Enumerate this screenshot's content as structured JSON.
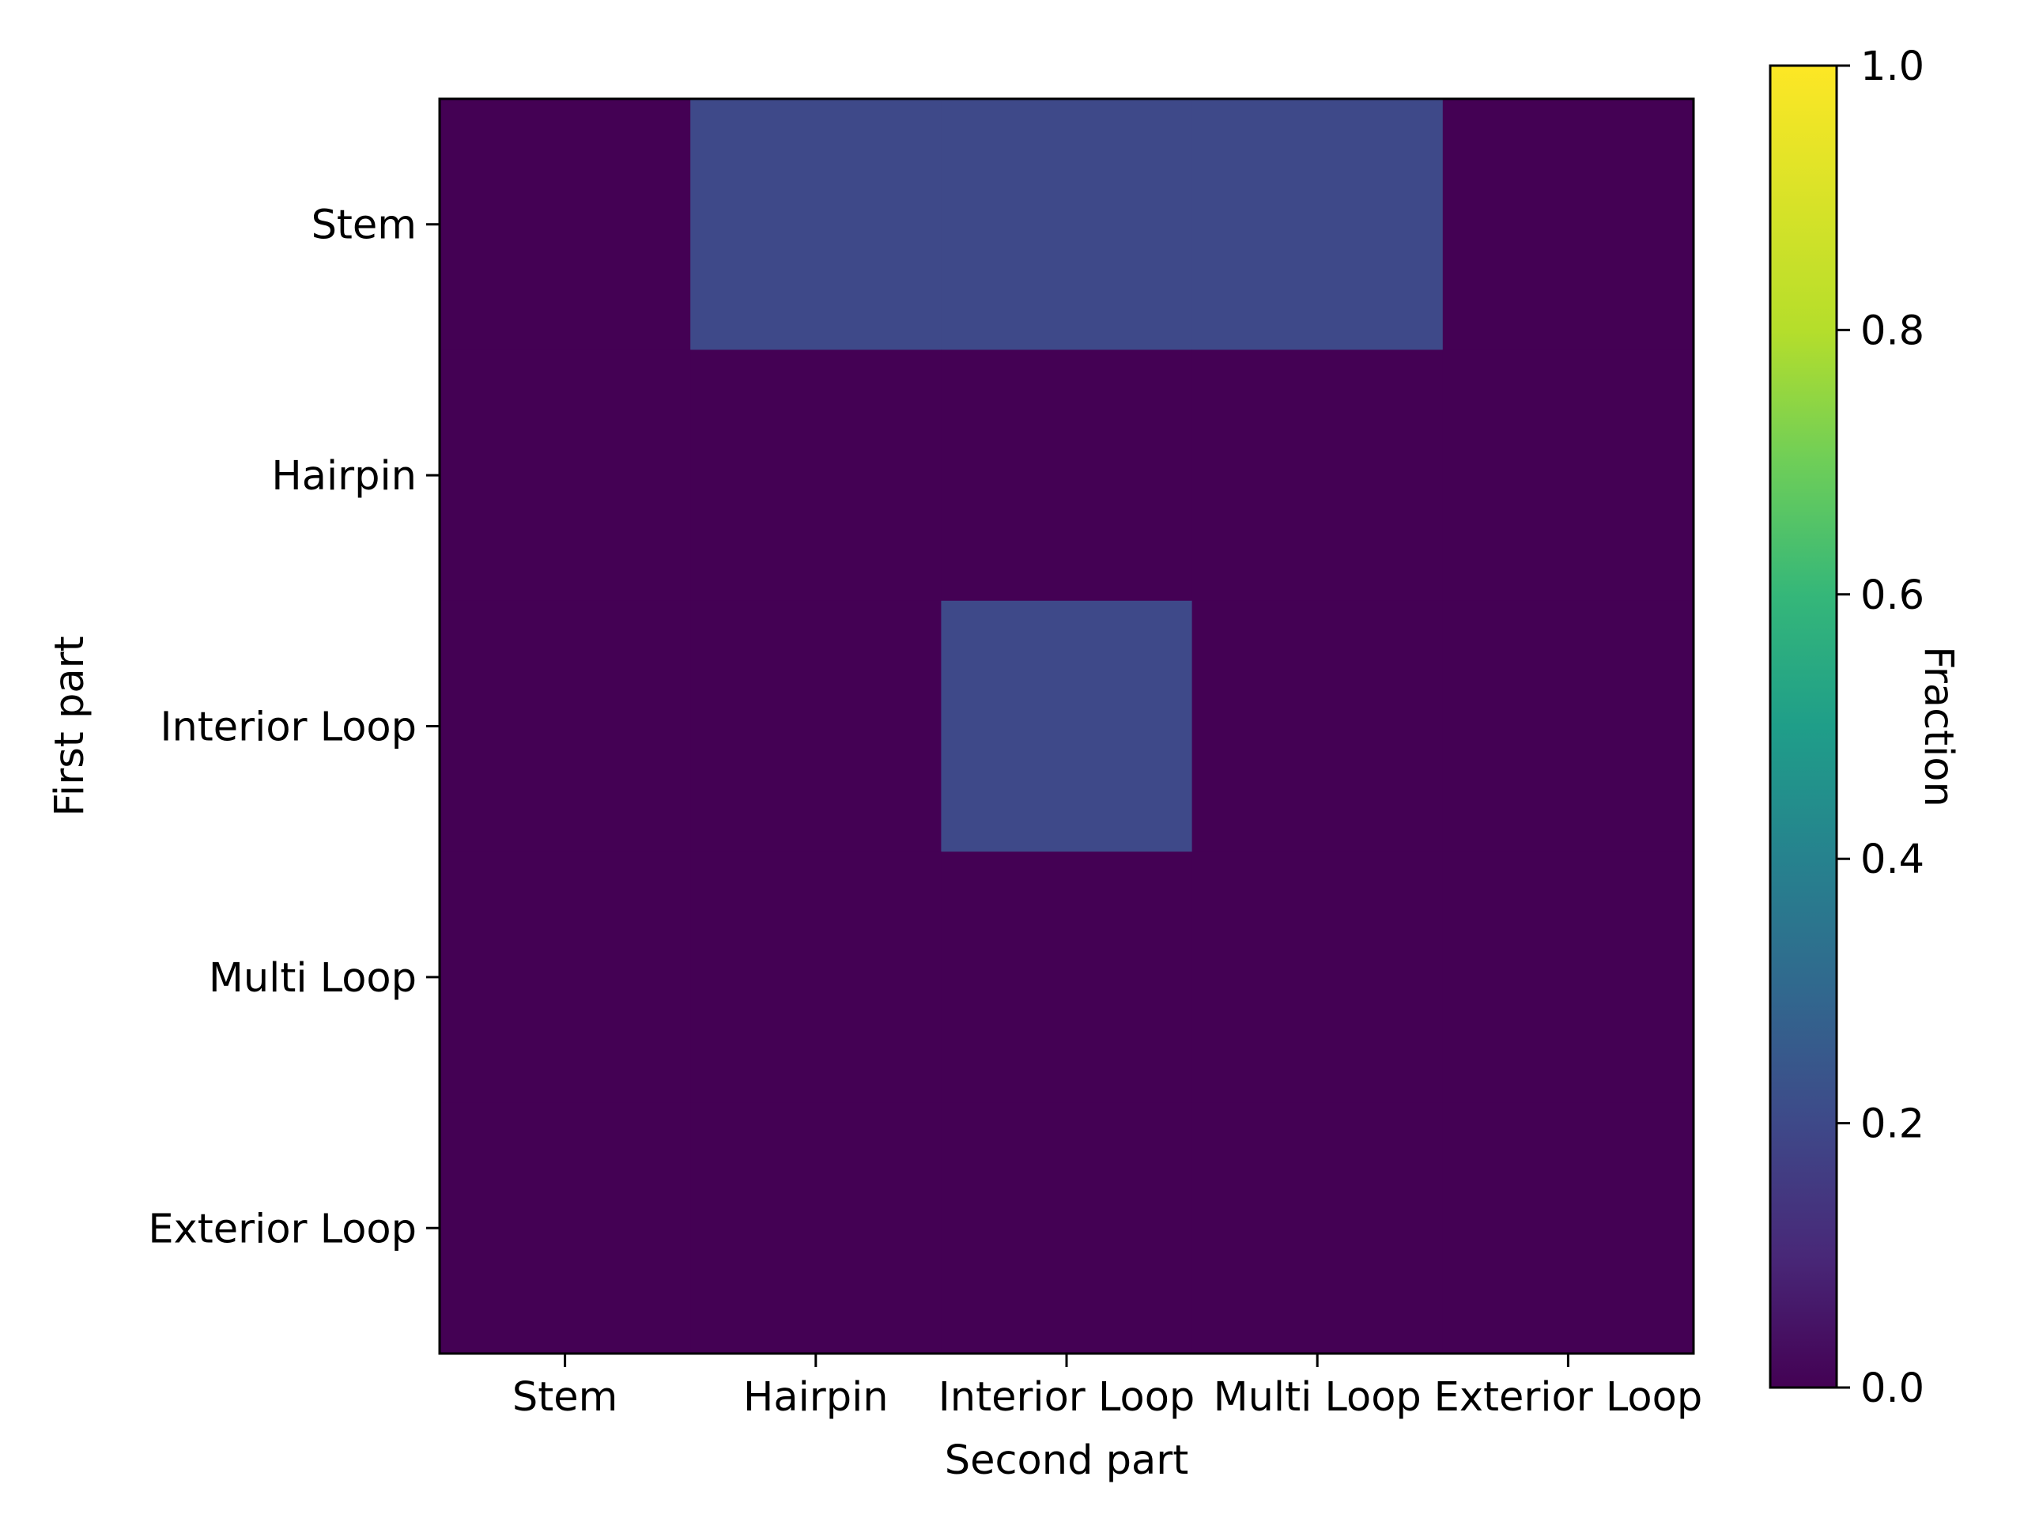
{
  "chart_data": {
    "type": "heatmap",
    "title": "",
    "xlabel": "Second part",
    "ylabel": "First part",
    "x_categories": [
      "Stem",
      "Hairpin",
      "Interior Loop",
      "Multi Loop",
      "Exterior Loop"
    ],
    "y_categories": [
      "Stem",
      "Hairpin",
      "Interior Loop",
      "Multi Loop",
      "Exterior Loop"
    ],
    "values": [
      [
        0.0,
        0.2,
        0.2,
        0.2,
        0.0
      ],
      [
        0.0,
        0.0,
        0.0,
        0.0,
        0.0
      ],
      [
        0.0,
        0.0,
        0.2,
        0.0,
        0.0
      ],
      [
        0.0,
        0.0,
        0.0,
        0.0,
        0.0
      ],
      [
        0.0,
        0.0,
        0.0,
        0.0,
        0.0
      ]
    ],
    "colorbar": {
      "label": "Fraction",
      "colormap": "viridis",
      "range": [
        0.0,
        1.0
      ],
      "ticks": [
        "0.0",
        "0.2",
        "0.4",
        "0.6",
        "0.8",
        "1.0"
      ]
    },
    "grid": false
  }
}
